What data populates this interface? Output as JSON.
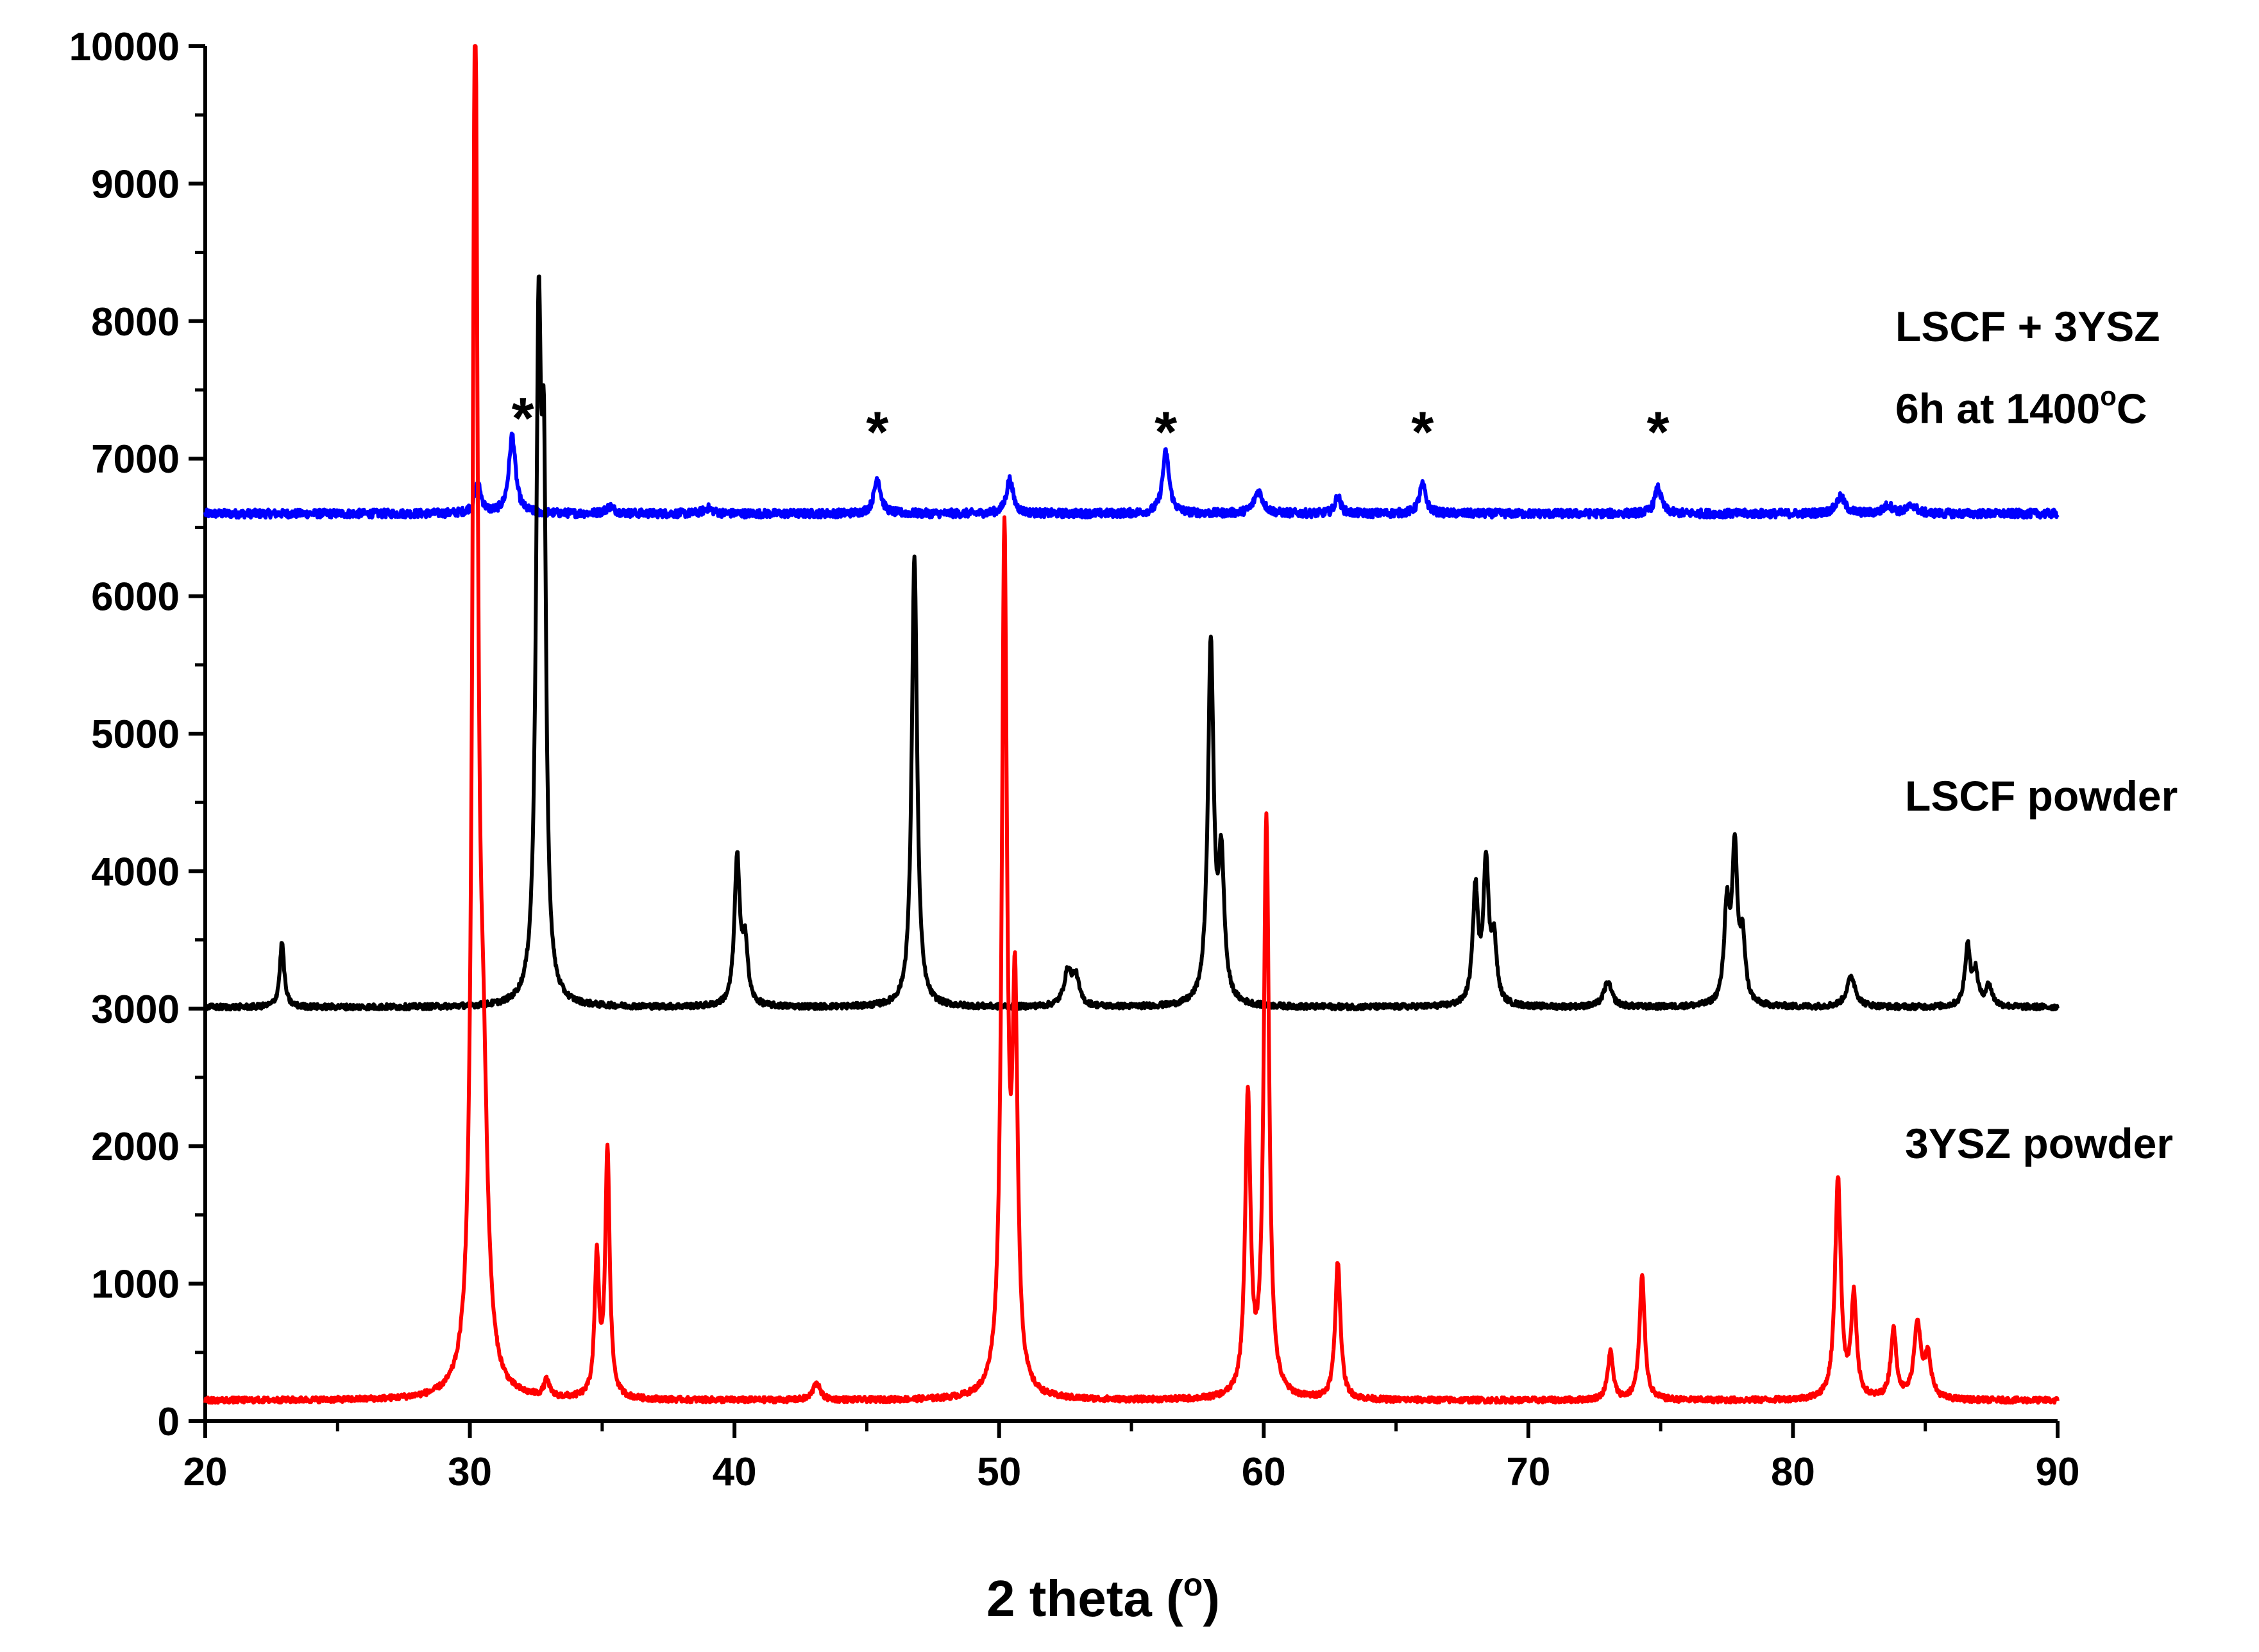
{
  "chart_data": {
    "type": "line",
    "xlabel_main": "2 theta (",
    "xlabel_sup": "o",
    "xlabel_end": ")",
    "ylabel": "",
    "xlim": [
      20,
      90
    ],
    "ylim": [
      0,
      10000
    ],
    "x_ticks": [
      "20",
      "30",
      "40",
      "50",
      "60",
      "70",
      "80",
      "90"
    ],
    "y_ticks": [
      "0",
      "1000",
      "2000",
      "3000",
      "4000",
      "5000",
      "6000",
      "7000",
      "8000",
      "9000",
      "10000"
    ],
    "grid": false,
    "annotations": {
      "lscf_3ysz_line1": "LSCF + 3YSZ",
      "lscf_3ysz_line2_main": "6h at 1400",
      "lscf_3ysz_line2_sup": "o",
      "lscf_3ysz_line2_end": "C",
      "lscf_powder": "LSCF powder",
      "ysz_powder": "3YSZ powder",
      "star_symbol": "*",
      "star_positions_x": [
        32.0,
        45.4,
        56.3,
        66.0,
        74.9
      ]
    },
    "series": [
      {
        "color": "#0000ff",
        "baseline": 6600,
        "x_end": 90,
        "peaks": [
          {
            "x": 30.3,
            "y": 6810,
            "w": 0.15
          },
          {
            "x": 31.6,
            "y": 7170,
            "w": 0.15
          },
          {
            "x": 35.3,
            "y": 6650,
            "w": 0.2
          },
          {
            "x": 39.0,
            "y": 6640,
            "w": 0.2
          },
          {
            "x": 45.4,
            "y": 6860,
            "w": 0.15
          },
          {
            "x": 50.4,
            "y": 6850,
            "w": 0.15
          },
          {
            "x": 56.3,
            "y": 7050,
            "w": 0.15
          },
          {
            "x": 59.8,
            "y": 6760,
            "w": 0.2
          },
          {
            "x": 62.8,
            "y": 6730,
            "w": 0.12
          },
          {
            "x": 66.0,
            "y": 6810,
            "w": 0.15
          },
          {
            "x": 74.9,
            "y": 6790,
            "w": 0.15
          },
          {
            "x": 81.8,
            "y": 6720,
            "w": 0.2
          },
          {
            "x": 83.6,
            "y": 6660,
            "w": 0.2
          },
          {
            "x": 84.5,
            "y": 6660,
            "w": 0.2
          }
        ]
      },
      {
        "color": "#000000",
        "baseline": 3010,
        "x_end": 90,
        "peaks": [
          {
            "x": 22.9,
            "y": 3480,
            "w": 0.1
          },
          {
            "x": 32.6,
            "y": 7700,
            "w": 0.12
          },
          {
            "x": 32.8,
            "y": 6200,
            "w": 0.1
          },
          {
            "x": 40.1,
            "y": 4080,
            "w": 0.12
          },
          {
            "x": 40.4,
            "y": 3450,
            "w": 0.12
          },
          {
            "x": 46.8,
            "y": 6300,
            "w": 0.12
          },
          {
            "x": 52.6,
            "y": 3260,
            "w": 0.18
          },
          {
            "x": 52.9,
            "y": 3200,
            "w": 0.15
          },
          {
            "x": 58.0,
            "y": 5620,
            "w": 0.13
          },
          {
            "x": 58.4,
            "y": 4000,
            "w": 0.13
          },
          {
            "x": 68.0,
            "y": 3840,
            "w": 0.12
          },
          {
            "x": 68.4,
            "y": 4030,
            "w": 0.12
          },
          {
            "x": 68.7,
            "y": 3450,
            "w": 0.12
          },
          {
            "x": 73.0,
            "y": 3190,
            "w": 0.18
          },
          {
            "x": 77.5,
            "y": 3700,
            "w": 0.12
          },
          {
            "x": 77.8,
            "y": 4120,
            "w": 0.12
          },
          {
            "x": 78.1,
            "y": 3450,
            "w": 0.12
          },
          {
            "x": 82.2,
            "y": 3230,
            "w": 0.2
          },
          {
            "x": 86.6,
            "y": 3450,
            "w": 0.12
          },
          {
            "x": 86.9,
            "y": 3240,
            "w": 0.12
          },
          {
            "x": 87.4,
            "y": 3160,
            "w": 0.15
          }
        ]
      },
      {
        "color": "#ff0000",
        "baseline": 150,
        "x_end": 90,
        "peaks": [
          {
            "x": 30.2,
            "y": 10000,
            "w": 0.12
          },
          {
            "x": 30.5,
            "y": 2000,
            "w": 0.2
          },
          {
            "x": 32.9,
            "y": 270,
            "w": 0.12
          },
          {
            "x": 34.8,
            "y": 1150,
            "w": 0.1
          },
          {
            "x": 35.2,
            "y": 1950,
            "w": 0.1
          },
          {
            "x": 43.1,
            "y": 280,
            "w": 0.15
          },
          {
            "x": 50.2,
            "y": 6350,
            "w": 0.12
          },
          {
            "x": 50.6,
            "y": 2900,
            "w": 0.12
          },
          {
            "x": 59.4,
            "y": 2320,
            "w": 0.12
          },
          {
            "x": 60.1,
            "y": 4350,
            "w": 0.12
          },
          {
            "x": 62.8,
            "y": 1150,
            "w": 0.12
          },
          {
            "x": 73.1,
            "y": 500,
            "w": 0.12
          },
          {
            "x": 74.3,
            "y": 1050,
            "w": 0.12
          },
          {
            "x": 81.7,
            "y": 1760,
            "w": 0.13
          },
          {
            "x": 82.3,
            "y": 880,
            "w": 0.12
          },
          {
            "x": 83.8,
            "y": 650,
            "w": 0.13
          },
          {
            "x": 84.7,
            "y": 700,
            "w": 0.15
          },
          {
            "x": 85.1,
            "y": 450,
            "w": 0.15
          }
        ]
      }
    ]
  }
}
